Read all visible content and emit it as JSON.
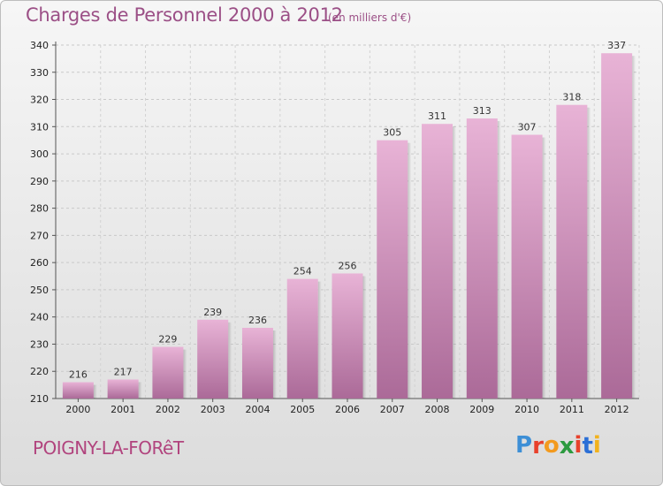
{
  "header": {
    "title": "Charges de Personnel 2000 à 2012",
    "subtitle": "(en milliers d'€)"
  },
  "footer": {
    "commune": "POIGNY-LA-FORêT",
    "logo_letters": [
      "P",
      "r",
      "o",
      "x",
      "i",
      "t",
      "i"
    ],
    "logo_colors": [
      "#3d8fd6",
      "#e8412c",
      "#f39a1e",
      "#2c9a3f",
      "#e8412c",
      "#2c6fd6",
      "#f2b21c"
    ]
  },
  "colors": {
    "bar": "#cf8fba",
    "bar_light": "#e8b3d6",
    "bar_dark": "#a96a95",
    "text_accent": "#9b4f86"
  },
  "chart_data": {
    "type": "bar",
    "categories": [
      "2000",
      "2001",
      "2002",
      "2003",
      "2004",
      "2005",
      "2006",
      "2007",
      "2008",
      "2009",
      "2010",
      "2011",
      "2012"
    ],
    "values": [
      216,
      217,
      229,
      239,
      236,
      254,
      256,
      305,
      311,
      313,
      307,
      318,
      337
    ],
    "title": "Charges de Personnel 2000 à 2012",
    "ylim": [
      210,
      340
    ],
    "yticks": [
      210,
      220,
      230,
      240,
      250,
      260,
      270,
      280,
      290,
      300,
      310,
      320,
      330,
      340
    ],
    "grid": true
  }
}
